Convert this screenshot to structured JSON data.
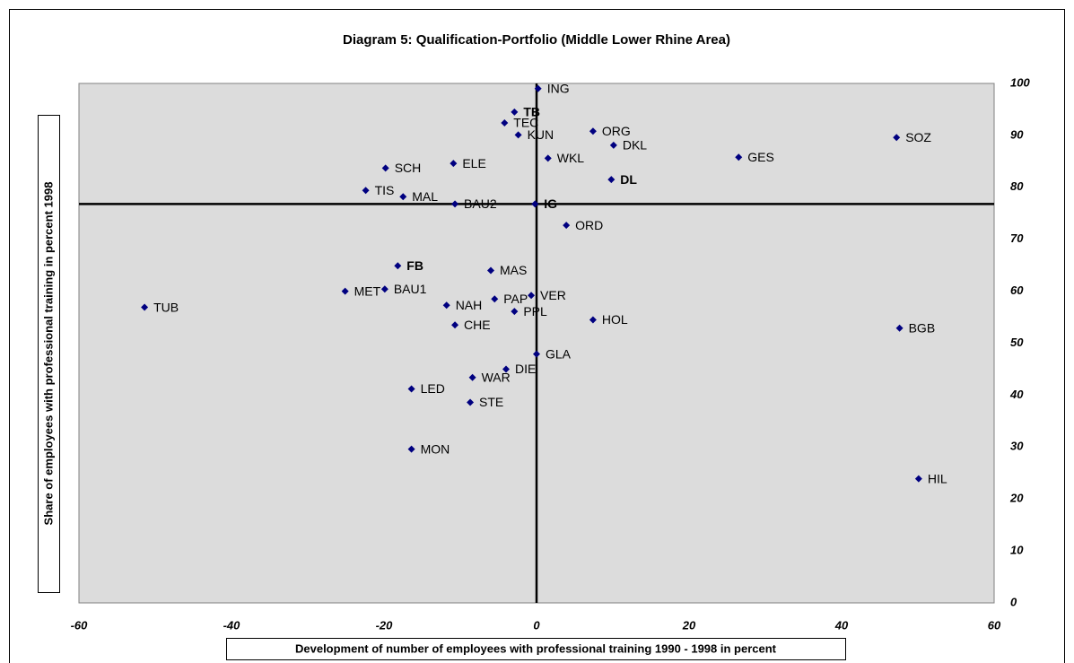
{
  "chart_data": {
    "type": "scatter",
    "title": "Diagram 5: Qualification-Portfolio (Middle Lower Rhine Area)",
    "x_label": "Development of number of employees with professional training 1990 - 1998 in percent",
    "y_label": "Share of employees with professional training in percent 1998",
    "labels": [
      "ING",
      "TB",
      "TEC",
      "KUN",
      "ORG",
      "DKL",
      "SOZ",
      "GES",
      "WKL",
      "ELE",
      "SCH",
      "DL",
      "TIS",
      "MAL",
      "BAU2",
      "IG",
      "ORD",
      "FB",
      "MAS",
      "VER",
      "PAP",
      "PPL",
      "MET",
      "BAU1",
      "TUB",
      "NAH",
      "CHE",
      "HOL",
      "BGB",
      "GLA",
      "DIE",
      "WAR",
      "LED",
      "STE",
      "MON",
      "HIL"
    ],
    "x": [
      0.2,
      -2.9,
      -4.2,
      -2.4,
      7.4,
      10.1,
      47.2,
      26.5,
      1.5,
      -10.9,
      -19.8,
      9.8,
      -22.4,
      -17.5,
      -10.7,
      -0.2,
      3.9,
      -18.2,
      -6.0,
      -0.7,
      -5.5,
      -2.9,
      -25.1,
      -19.9,
      -51.4,
      -11.8,
      -10.7,
      7.4,
      47.6,
      0,
      -4.0,
      -8.4,
      -16.4,
      -8.7,
      -16.4,
      50.1
    ],
    "values": [
      99.0,
      94.5,
      92.4,
      90.1,
      90.8,
      88.1,
      89.6,
      85.8,
      85.6,
      84.6,
      83.7,
      81.5,
      79.4,
      78.2,
      76.8,
      76.8,
      72.7,
      64.9,
      64.0,
      59.2,
      58.5,
      56.1,
      60.0,
      60.4,
      56.9,
      57.3,
      53.5,
      54.5,
      52.9,
      47.9,
      45.0,
      43.4,
      41.2,
      38.6,
      29.6,
      23.9
    ],
    "bold_labels": [
      1,
      11,
      15,
      17
    ],
    "color": "#000080",
    "background": "#dcdcdc",
    "xlim": [
      -60,
      60
    ],
    "xticks": [
      -60,
      -40,
      -20,
      0,
      20,
      40,
      60
    ],
    "ylim": [
      0,
      100
    ],
    "yticks": [
      0,
      10,
      20,
      30,
      40,
      50,
      60,
      70,
      80,
      90,
      100
    ],
    "reference_x": 0,
    "reference_y": 76.8,
    "y_axis_side": "right"
  }
}
